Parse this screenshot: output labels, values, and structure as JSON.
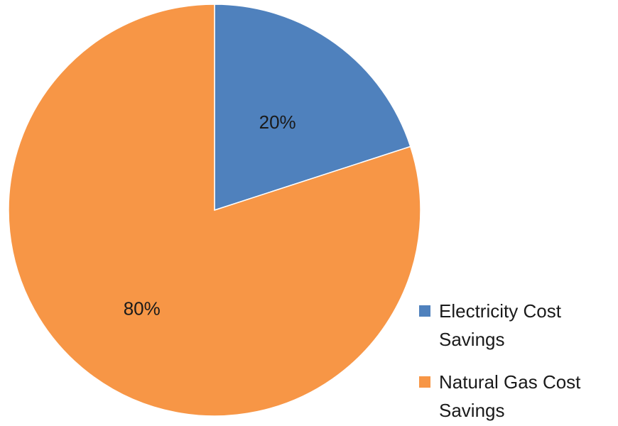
{
  "chart_data": {
    "type": "pie",
    "title": "",
    "categories": [
      "Electricity Cost Savings",
      "Natural Gas Cost Savings"
    ],
    "values": [
      20,
      80
    ],
    "data_labels": [
      "20%",
      "80%"
    ],
    "colors": [
      "#4f81bd",
      "#f79646"
    ],
    "legend": {
      "placement": "bottom-right",
      "lines": [
        [
          "Electricity Cost",
          "Savings"
        ],
        [
          "Natural Gas Cost",
          "Savings"
        ]
      ]
    }
  }
}
